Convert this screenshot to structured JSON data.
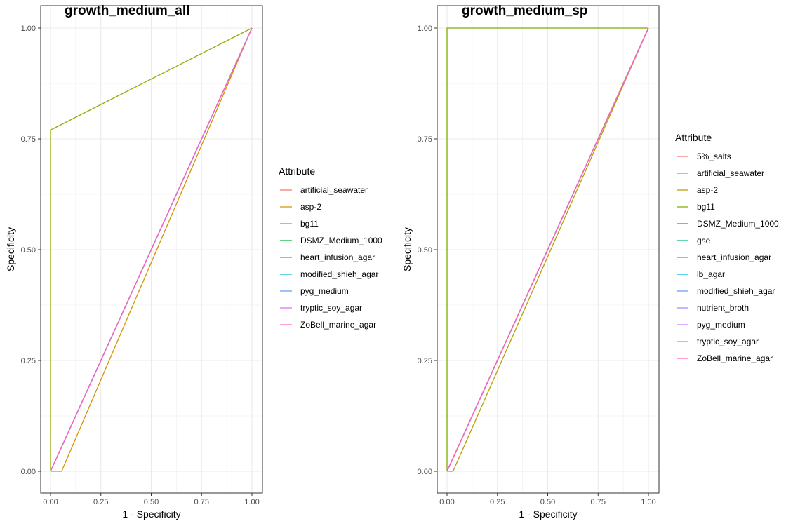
{
  "chart_data": [
    {
      "type": "line",
      "title": "growth_medium_all",
      "xlabel": "1 - Specificity",
      "ylabel": "Specificity",
      "xlim": [
        0,
        1
      ],
      "ylim": [
        0,
        1
      ],
      "x_ticks": [
        "0.00",
        "0.25",
        "0.50",
        "0.75",
        "1.00"
      ],
      "y_ticks": [
        "0.00",
        "0.25",
        "0.50",
        "0.75",
        "1.00"
      ],
      "grid": true,
      "legend_title": "Attribute",
      "legend_position": "right",
      "series": [
        {
          "name": "artificial_seawater",
          "color": "#F8766D",
          "x": [
            0,
            1
          ],
          "y": [
            0,
            1
          ]
        },
        {
          "name": "asp-2",
          "color": "#D39200",
          "x": [
            0,
            0.055,
            1
          ],
          "y": [
            0,
            0,
            1
          ]
        },
        {
          "name": "bg11",
          "color": "#93AA00",
          "x": [
            0,
            0,
            1
          ],
          "y": [
            0,
            0.77,
            1
          ]
        },
        {
          "name": "DSMZ_Medium_1000",
          "color": "#00BA38",
          "x": [
            0,
            1
          ],
          "y": [
            0,
            1
          ]
        },
        {
          "name": "heart_infusion_agar",
          "color": "#00C19F",
          "x": [
            0,
            1
          ],
          "y": [
            0,
            1
          ]
        },
        {
          "name": "modified_shieh_agar",
          "color": "#00B9E3",
          "x": [
            0,
            1
          ],
          "y": [
            0,
            1
          ]
        },
        {
          "name": "pyg_medium",
          "color": "#619CFF",
          "x": [
            0,
            1
          ],
          "y": [
            0,
            1
          ]
        },
        {
          "name": "tryptic_soy_agar",
          "color": "#DB72FB",
          "x": [
            0,
            1
          ],
          "y": [
            0,
            1
          ]
        },
        {
          "name": "ZoBell_marine_agar",
          "color": "#FF61C3",
          "x": [
            0,
            1
          ],
          "y": [
            0,
            1
          ]
        }
      ]
    },
    {
      "type": "line",
      "title": "growth_medium_sp",
      "xlabel": "1 - Specificity",
      "ylabel": "Specificity",
      "xlim": [
        0,
        1
      ],
      "ylim": [
        0,
        1
      ],
      "x_ticks": [
        "0.00",
        "0.25",
        "0.50",
        "0.75",
        "1.00"
      ],
      "y_ticks": [
        "0.00",
        "0.25",
        "0.50",
        "0.75",
        "1.00"
      ],
      "grid": true,
      "legend_title": "Attribute",
      "legend_position": "right",
      "series": [
        {
          "name": "5%_salts",
          "color": "#F8766D",
          "x": [
            0,
            1
          ],
          "y": [
            0,
            1
          ]
        },
        {
          "name": "artificial_seawater",
          "color": "#DE8C00",
          "x": [
            0,
            1
          ],
          "y": [
            0,
            1
          ]
        },
        {
          "name": "asp-2",
          "color": "#B79F00",
          "x": [
            0,
            0.03,
            1
          ],
          "y": [
            0,
            0,
            1
          ]
        },
        {
          "name": "bg11",
          "color": "#7CAE00",
          "x": [
            0,
            0,
            1
          ],
          "y": [
            0,
            1,
            1
          ]
        },
        {
          "name": "DSMZ_Medium_1000",
          "color": "#00BA38",
          "x": [
            0,
            1
          ],
          "y": [
            0,
            1
          ]
        },
        {
          "name": "gse",
          "color": "#00C08B",
          "x": [
            0,
            1
          ],
          "y": [
            0,
            1
          ]
        },
        {
          "name": "heart_infusion_agar",
          "color": "#00BFC4",
          "x": [
            0,
            1
          ],
          "y": [
            0,
            1
          ]
        },
        {
          "name": "lb_agar",
          "color": "#00B4F0",
          "x": [
            0,
            1
          ],
          "y": [
            0,
            1
          ]
        },
        {
          "name": "modified_shieh_agar",
          "color": "#619CFF",
          "x": [
            0,
            1
          ],
          "y": [
            0,
            1
          ]
        },
        {
          "name": "nutrient_broth",
          "color": "#9D8DFF",
          "x": [
            0,
            1
          ],
          "y": [
            0,
            1
          ]
        },
        {
          "name": "pyg_medium",
          "color": "#C77CFF",
          "x": [
            0,
            1
          ],
          "y": [
            0,
            1
          ]
        },
        {
          "name": "tryptic_soy_agar",
          "color": "#F564E3",
          "x": [
            0,
            1
          ],
          "y": [
            0,
            1
          ]
        },
        {
          "name": "ZoBell_marine_agar",
          "color": "#FF64B0",
          "x": [
            0,
            1
          ],
          "y": [
            0,
            1
          ]
        }
      ]
    }
  ]
}
